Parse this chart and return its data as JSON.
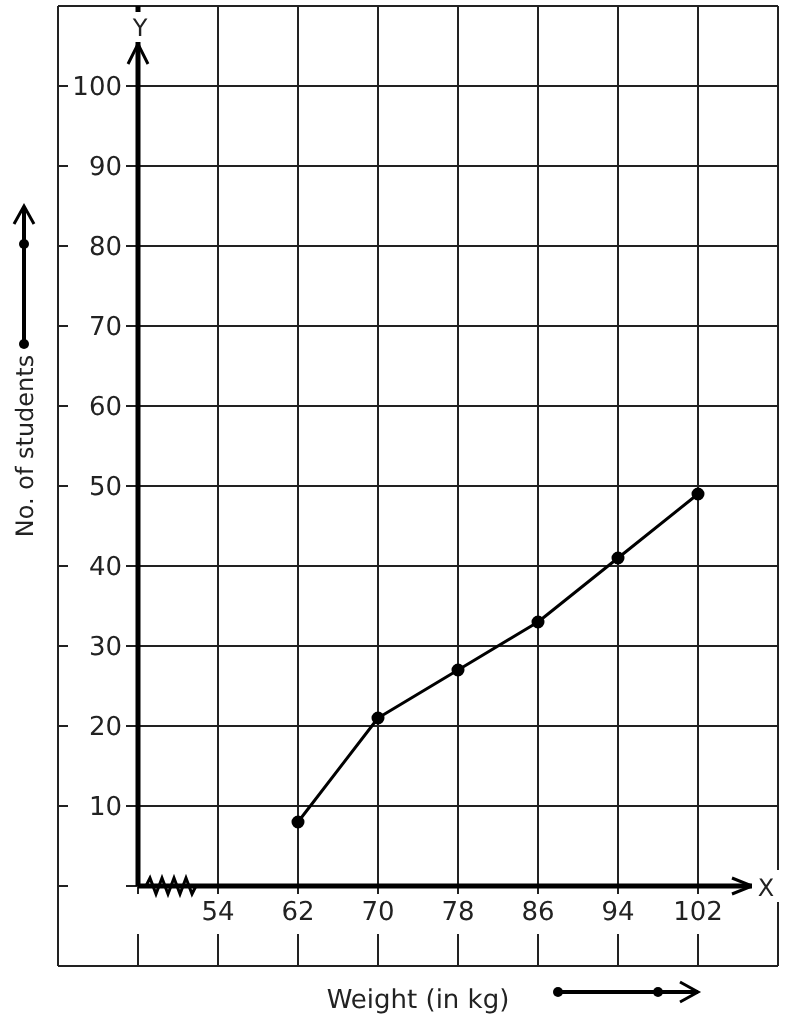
{
  "chart_data": {
    "type": "line",
    "xlabel": "Weight (in kg)",
    "ylabel": "No. of students",
    "annotations": [
      "Y",
      "X"
    ],
    "x": [
      62,
      70,
      78,
      86,
      94,
      102
    ],
    "series": [
      {
        "color": "#000000",
        "values": [
          8,
          21,
          27,
          33,
          41,
          49
        ]
      }
    ],
    "xlim": [
      46,
      110
    ],
    "xticks": [
      {
        "value": 46,
        "label": null
      },
      54,
      62,
      70,
      78,
      86,
      94,
      102
    ],
    "ylim": [
      0,
      110
    ],
    "yticks": [
      {
        "value": 0,
        "label": null
      },
      10,
      20,
      30,
      40,
      50,
      60,
      70,
      80,
      90,
      100
    ],
    "grid": true,
    "marker": "circle",
    "line_style": "solid",
    "legend": false
  }
}
